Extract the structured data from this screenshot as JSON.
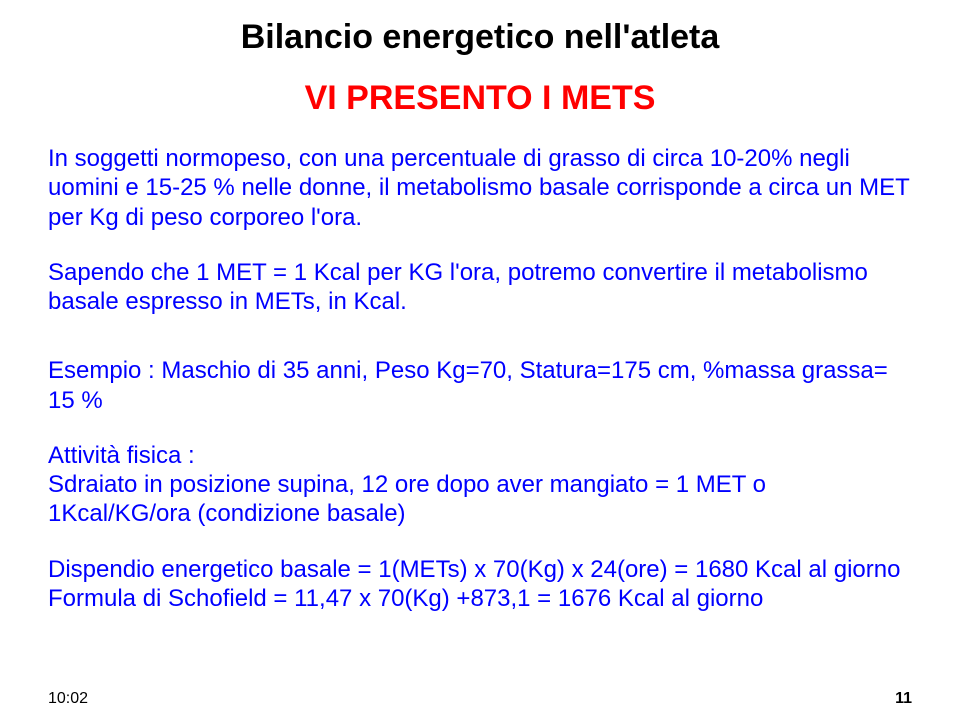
{
  "title": "Bilancio energetico nell'atleta",
  "subtitle": "VI PRESENTO I METS",
  "paragraphs": {
    "p1": "In soggetti normopeso, con una percentuale di grasso di circa 10-20% negli  uomini e  15-25 % nelle donne, il metabolismo basale corrisponde a circa un MET per Kg di peso corporeo  l'ora.",
    "p2": "Sapendo che 1 MET = 1  Kcal per KG l'ora, potremo convertire il metabolismo basale espresso in  METs,  in Kcal.",
    "p3": "Esempio :  Maschio di 35 anni,  Peso Kg=70,  Statura=175 cm, %massa grassa= 15 %",
    "p4a": "Attività fisica :",
    "p4b": "Sdraiato in posizione supina, 12 ore dopo aver mangiato = 1 MET o  1Kcal/KG/ora (condizione basale)",
    "p5a": "Dispendio energetico basale = 1(METs)  x 70(Kg)  x 24(ore)    = 1680 Kcal al giorno",
    "p5b": "Formula di Schofield  = 11,47 x 70(Kg) +873,1 = 1676 Kcal al giorno"
  },
  "colors": {
    "title": "#000000",
    "subtitle": "#ff0000",
    "body": "#0000ff",
    "background": "#ffffff",
    "footer": "#000000"
  },
  "fontsizes": {
    "title_pt": 26,
    "subtitle_pt": 26,
    "body_pt": 18,
    "footer_pt": 12
  },
  "footer": {
    "time": "10:02",
    "page": "11"
  }
}
